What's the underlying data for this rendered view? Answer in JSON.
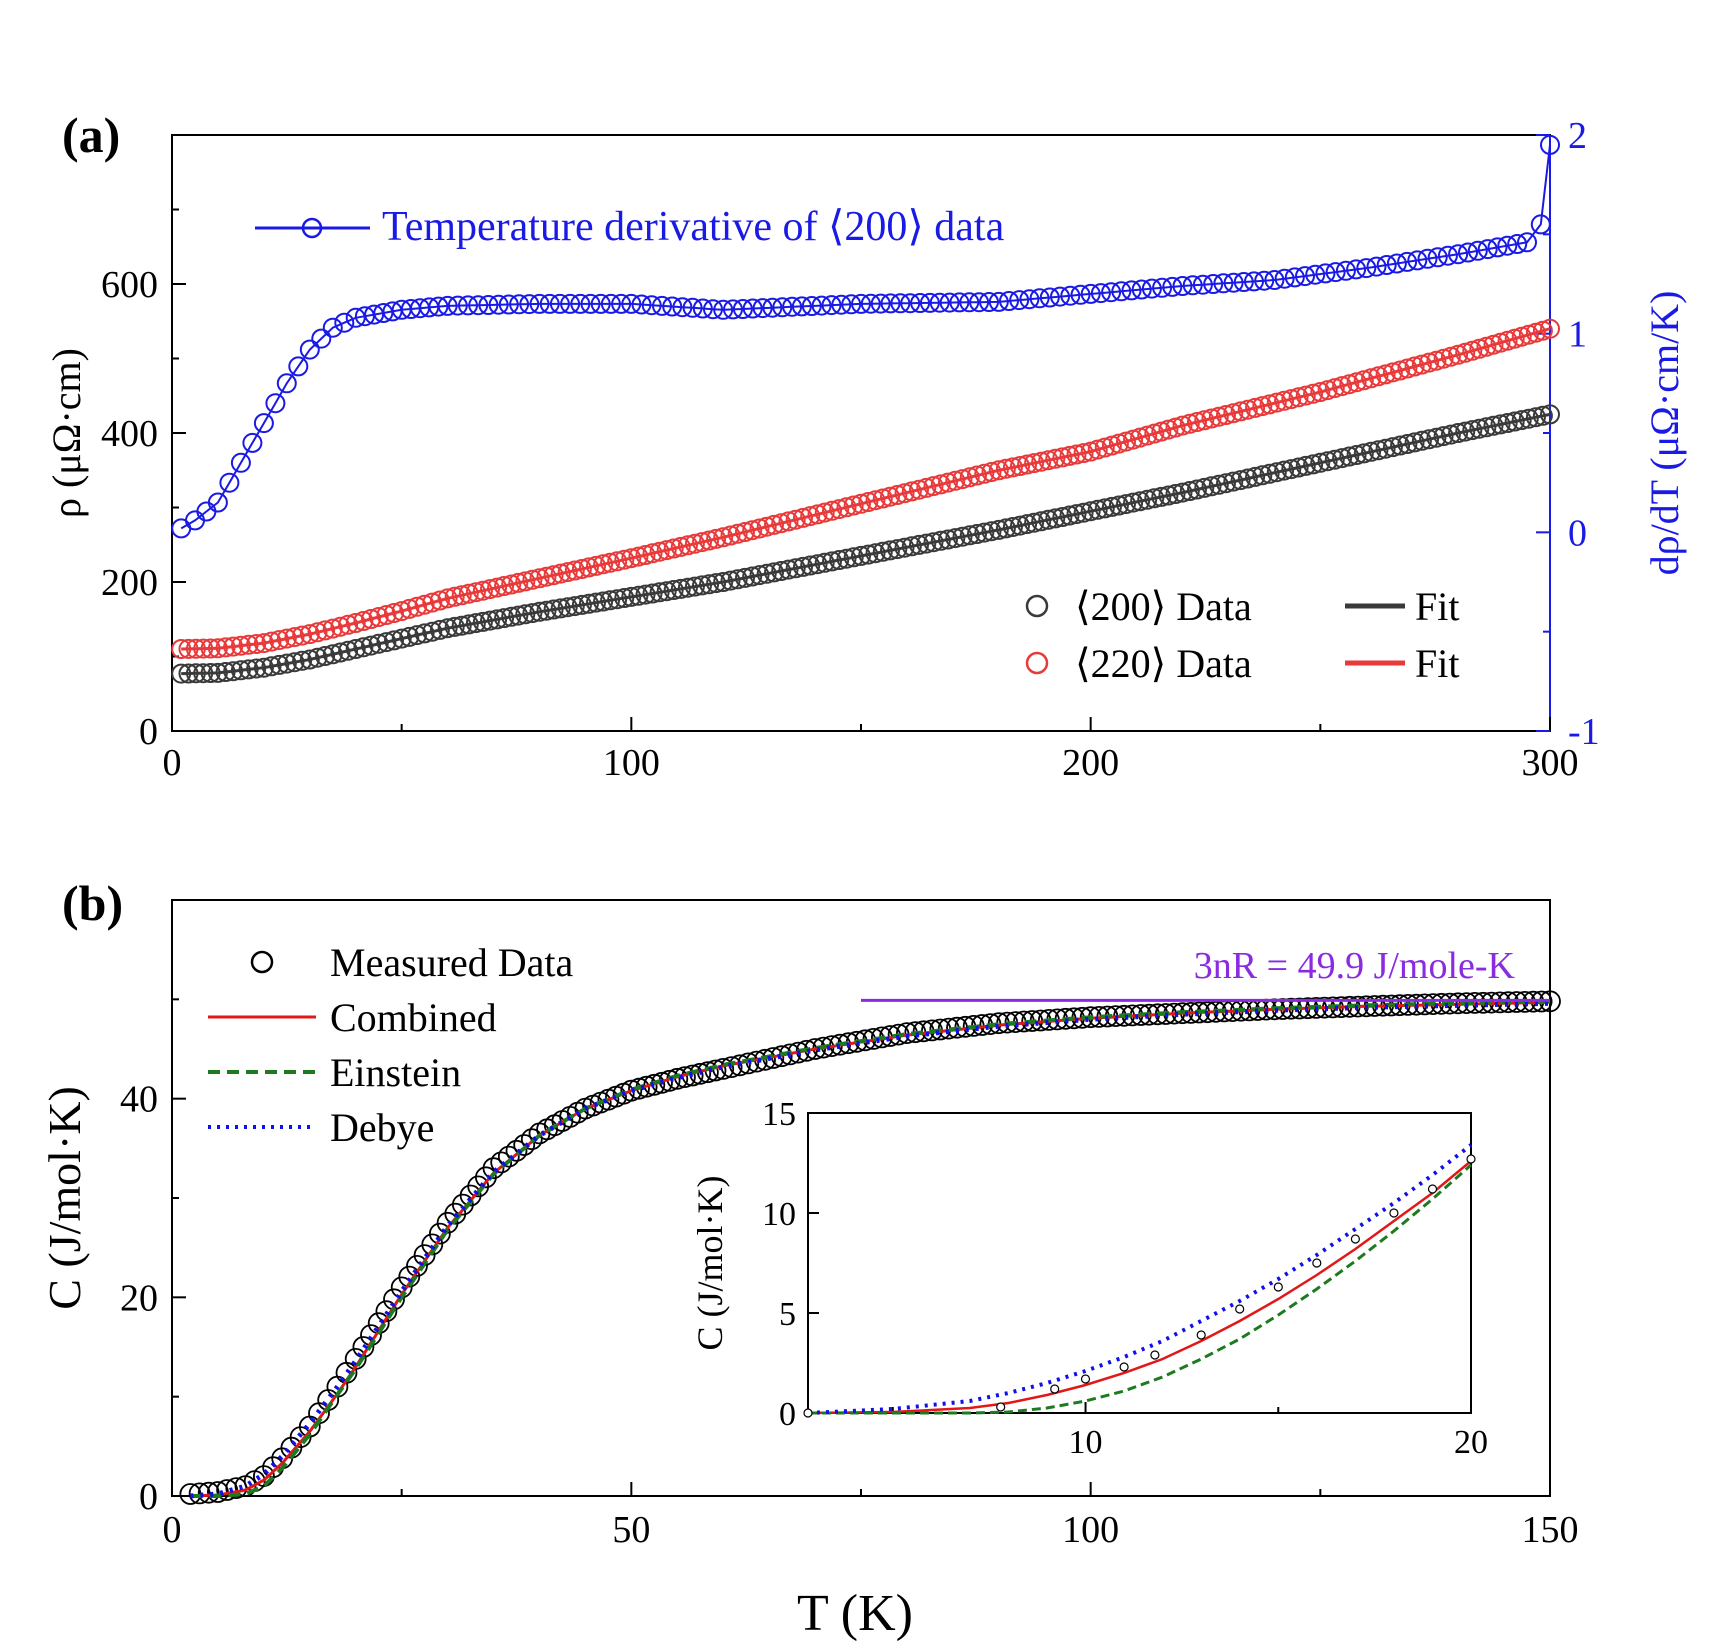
{
  "figure": {
    "x_axis_title": "T (K)",
    "panel_a_label": "(a)",
    "panel_b_label": "(b)"
  },
  "chart_data": [
    {
      "panel": "(a)",
      "type": "scatter",
      "ylabel": "ρ (μΩ·cm)",
      "y2label": "dρ/dT (μΩ·cm/K)",
      "xlim": [
        0,
        300
      ],
      "ylim": [
        0,
        800
      ],
      "y2lim": [
        -1,
        2
      ],
      "xticks": [
        "0",
        "100",
        "200",
        "300"
      ],
      "yticks": [
        "0",
        "200",
        "400",
        "600"
      ],
      "y2ticks": [
        "-1",
        "0",
        "1",
        "2"
      ],
      "colors": {
        "s200": "#3a3a3a",
        "s220": "#e83a3a",
        "deriv": "#1a1ae6"
      },
      "annotation": "Temperature derivative of ⟨200⟩ data",
      "legend": {
        "position": "bottom-right",
        "entries": [
          "⟨200⟩ Data",
          "⟨220⟩ Data",
          "Fit",
          "Fit"
        ]
      },
      "series": [
        {
          "name": "⟨200⟩ Data",
          "axis": "left",
          "marker": "circle",
          "x": [
            2,
            10,
            20,
            30,
            40,
            50,
            60,
            80,
            100,
            120,
            150,
            180,
            200,
            220,
            250,
            280,
            300
          ],
          "y": [
            77,
            78,
            85,
            96,
            110,
            124,
            138,
            160,
            180,
            200,
            235,
            270,
            295,
            320,
            360,
            400,
            425
          ]
        },
        {
          "name": "⟨220⟩ Data",
          "axis": "left",
          "marker": "circle",
          "x": [
            2,
            10,
            20,
            30,
            40,
            50,
            60,
            80,
            100,
            120,
            150,
            180,
            200,
            220,
            250,
            280,
            300
          ],
          "y": [
            110,
            111,
            118,
            130,
            145,
            161,
            178,
            205,
            232,
            260,
            305,
            350,
            375,
            410,
            455,
            505,
            540
          ]
        },
        {
          "name": "Temperature derivative of ⟨200⟩ data",
          "axis": "right",
          "marker": "circle",
          "x": [
            2,
            5,
            10,
            15,
            20,
            25,
            30,
            35,
            40,
            50,
            60,
            80,
            100,
            120,
            150,
            180,
            200,
            220,
            240,
            260,
            280,
            295,
            298,
            300
          ],
          "y": [
            0.02,
            0.06,
            0.15,
            0.35,
            0.55,
            0.75,
            0.92,
            1.03,
            1.08,
            1.12,
            1.14,
            1.15,
            1.15,
            1.12,
            1.15,
            1.16,
            1.2,
            1.24,
            1.27,
            1.33,
            1.4,
            1.46,
            1.55,
            1.95
          ]
        }
      ]
    },
    {
      "panel": "(b)",
      "type": "scatter",
      "ylabel": "C (J/mol·K)",
      "xlim": [
        0,
        150
      ],
      "ylim": [
        0,
        60
      ],
      "xticks": [
        "0",
        "50",
        "100",
        "150"
      ],
      "yticks": [
        "0",
        "20",
        "40"
      ],
      "colors": {
        "data": "#000000",
        "combined": "#e01818",
        "einstein": "#1e7a1e",
        "debye": "#1010e8",
        "limit": "#8a2be2"
      },
      "annotation": "3nR = 49.9 J/mole-K",
      "limit_line": {
        "y": 49.9,
        "x_start": 75,
        "x_end": 150
      },
      "legend": {
        "position": "top-left",
        "entries": [
          "Measured Data",
          "Combined",
          "Einstein",
          "Debye"
        ]
      },
      "series": [
        {
          "name": "Measured Data",
          "marker": "circle",
          "x": [
            2,
            5,
            8,
            10,
            12,
            15,
            18,
            20,
            25,
            30,
            35,
            40,
            45,
            50,
            55,
            60,
            70,
            80,
            90,
            100,
            110,
            120,
            130,
            140,
            150
          ],
          "y": [
            0.2,
            0.4,
            1.0,
            2.0,
            3.8,
            7.0,
            11.0,
            13.8,
            21.0,
            27.5,
            33.0,
            36.5,
            39.0,
            40.8,
            42.0,
            43.0,
            45.0,
            46.6,
            47.6,
            48.2,
            48.6,
            49.0,
            49.3,
            49.6,
            49.8
          ]
        },
        {
          "name": "Combined",
          "line": "solid",
          "x": [
            2,
            5,
            8,
            10,
            12,
            15,
            18,
            20,
            25,
            30,
            35,
            40,
            45,
            50,
            55,
            60,
            70,
            80,
            90,
            100,
            110,
            120,
            130,
            140,
            150
          ],
          "y": [
            0.0,
            0.1,
            0.6,
            1.6,
            3.3,
            6.5,
            10.3,
            13.0,
            20.3,
            27.0,
            32.5,
            36.3,
            39.0,
            40.8,
            42.2,
            43.3,
            45.0,
            46.4,
            47.4,
            48.1,
            48.6,
            49.0,
            49.3,
            49.5,
            49.7
          ]
        },
        {
          "name": "Einstein",
          "line": "dashed",
          "x": [
            2,
            5,
            8,
            10,
            12,
            15,
            18,
            20,
            25,
            30,
            35,
            40,
            45,
            50,
            55,
            60,
            70,
            80,
            90,
            100,
            110,
            120,
            130,
            140,
            150
          ],
          "y": [
            0.0,
            0.0,
            0.2,
            1.0,
            2.8,
            6.2,
            10.2,
            12.8,
            20.0,
            26.8,
            32.4,
            36.3,
            39.0,
            40.9,
            42.3,
            43.4,
            45.1,
            46.5,
            47.5,
            48.2,
            48.7,
            49.1,
            49.4,
            49.6,
            49.8
          ]
        },
        {
          "name": "Debye",
          "line": "dotted",
          "x": [
            2,
            5,
            8,
            10,
            12,
            15,
            18,
            20,
            25,
            30,
            35,
            40,
            45,
            50,
            55,
            60,
            70,
            80,
            90,
            100,
            110,
            120,
            130,
            140,
            150
          ],
          "y": [
            0.0,
            0.2,
            1.0,
            2.2,
            4.0,
            7.3,
            11.0,
            13.6,
            20.6,
            27.2,
            32.6,
            36.3,
            39.0,
            40.8,
            42.1,
            43.2,
            44.9,
            46.3,
            47.3,
            48.0,
            48.5,
            48.9,
            49.2,
            49.4,
            49.6
          ]
        }
      ],
      "inset": {
        "type": "scatter",
        "ylabel": "C (J/mol·K)",
        "xlim": [
          2.8,
          20
        ],
        "ylim": [
          0,
          15
        ],
        "xticks": [
          "10",
          "20"
        ],
        "yticks": [
          "0",
          "5",
          "10",
          "15"
        ],
        "series": [
          {
            "name": "Measured Data",
            "marker": "circle",
            "x": [
              2.8,
              7.8,
              9.2,
              10.0,
              11.0,
              11.8,
              13.0,
              14.0,
              15.0,
              16.0,
              17.0,
              18.0,
              19.0,
              20.0
            ],
            "y": [
              0.0,
              0.3,
              1.2,
              1.7,
              2.3,
              2.9,
              3.9,
              5.2,
              6.3,
              7.5,
              8.7,
              10.0,
              11.2,
              12.7
            ]
          },
          {
            "name": "Combined",
            "line": "solid",
            "x": [
              2.8,
              5,
              7,
              8,
              9,
              10,
              11,
              12,
              13,
              14,
              15,
              16,
              17,
              18,
              19,
              20
            ],
            "y": [
              0.0,
              0.05,
              0.25,
              0.5,
              0.9,
              1.4,
              2.0,
              2.7,
              3.6,
              4.6,
              5.7,
              6.9,
              8.2,
              9.6,
              11.0,
              12.6
            ]
          },
          {
            "name": "Einstein",
            "line": "dashed",
            "x": [
              2.8,
              5,
              7,
              8,
              9,
              10,
              11,
              12,
              13,
              14,
              15,
              16,
              17,
              18,
              19,
              20
            ],
            "y": [
              0.0,
              0.0,
              0.0,
              0.05,
              0.25,
              0.6,
              1.1,
              1.8,
              2.7,
              3.7,
              4.9,
              6.2,
              7.6,
              9.1,
              10.7,
              12.4
            ]
          },
          {
            "name": "Debye",
            "line": "dotted",
            "x": [
              2.8,
              5,
              7,
              8,
              9,
              10,
              11,
              12,
              13,
              14,
              15,
              16,
              17,
              18,
              19,
              20
            ],
            "y": [
              0.0,
              0.2,
              0.6,
              1.0,
              1.5,
              2.1,
              2.8,
              3.6,
              4.6,
              5.6,
              6.7,
              7.9,
              9.2,
              10.5,
              11.9,
              13.4
            ]
          }
        ]
      }
    }
  ]
}
